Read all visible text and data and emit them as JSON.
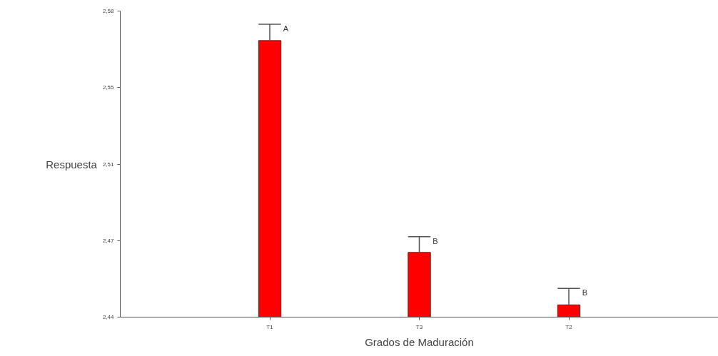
{
  "chart_data": {
    "type": "bar",
    "xlabel": "Grados de Maduración",
    "ylabel": "Respuesta",
    "categories": [
      "T1",
      "T3",
      "T2"
    ],
    "values": [
      2.5665,
      2.4696,
      2.4456
    ],
    "errors": [
      [
        2.5665,
        2.574
      ],
      [
        2.4696,
        2.4768
      ],
      [
        2.4456,
        2.4531
      ]
    ],
    "color": "#ff0000",
    "ylim": [
      2.44,
      2.58
    ],
    "yticks": [
      {
        "value": 2.44,
        "label": "2,44"
      },
      {
        "value": 2.475,
        "label": "2,47"
      },
      {
        "value": 2.51,
        "label": "2,51"
      },
      {
        "value": 2.545,
        "label": "2,55"
      },
      {
        "value": 2.58,
        "label": "2,58"
      }
    ],
    "annotations": [
      {
        "text": "A",
        "x": "T1",
        "y": 2.574
      },
      {
        "text": "B",
        "x": "T3",
        "y": 2.4768
      },
      {
        "text": "B",
        "x": "T2",
        "y": 2.4531
      }
    ],
    "grid": false
  }
}
